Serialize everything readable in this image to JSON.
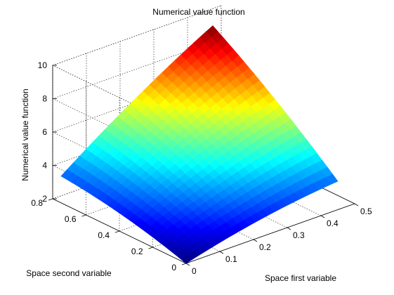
{
  "chart_data": {
    "type": "surface",
    "title": "Numerical value function",
    "xlabel": "Space first variable",
    "ylabel": "Space second variable",
    "zlabel": "Numerical value function",
    "xlim": [
      0,
      0.5
    ],
    "ylim": [
      0,
      0.8
    ],
    "zlim": [
      2,
      10
    ],
    "x_ticks": [
      "0",
      "0.1",
      "0.2",
      "0.3",
      "0.4",
      "0.5"
    ],
    "y_ticks": [
      "0",
      "0.2",
      "0.4",
      "0.6",
      "0.8"
    ],
    "z_ticks": [
      "2",
      "4",
      "6",
      "8",
      "10"
    ],
    "grid": true,
    "colormap": "jet",
    "surface": {
      "x_range": [
        0,
        0.45
      ],
      "y_range": [
        0,
        0.75
      ],
      "corner_values": {
        "x0_y0": 2.0,
        "x045_y0": 3.7,
        "x0_y075": 3.6,
        "x045_y075": 9.4
      }
    }
  }
}
